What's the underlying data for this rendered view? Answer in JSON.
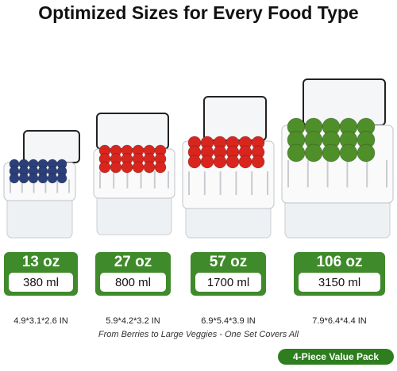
{
  "header": {
    "title": "Optimized Sizes for Every Food Type"
  },
  "products": [
    {
      "volume_oz": "13 oz",
      "volume_ml": "380 ml",
      "dimensions": "4.9*3.1*2.6 IN"
    },
    {
      "volume_oz": "27 oz",
      "volume_ml": "800 ml",
      "dimensions": "5.9*4.2*3.2 IN"
    },
    {
      "volume_oz": "57 oz",
      "volume_ml": "1700 ml",
      "dimensions": "6.9*5.4*3.9 IN"
    },
    {
      "volume_oz": "106 oz",
      "volume_ml": "3150 ml",
      "dimensions": "7.9*6.4*4.4 IN"
    }
  ],
  "tagline": "From Berries to Large Veggies - One Set Covers All",
  "badge": "4-Piece Value Pack"
}
